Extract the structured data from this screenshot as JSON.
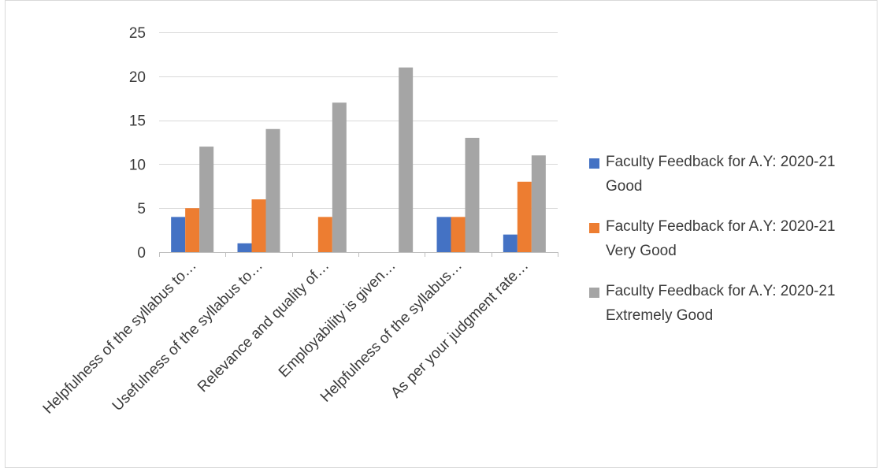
{
  "chart_data": {
    "type": "bar",
    "title": "",
    "xlabel": "",
    "ylabel": "",
    "ylim": [
      0,
      25
    ],
    "yticks": [
      0,
      5,
      10,
      15,
      20,
      25
    ],
    "grid": true,
    "legend_position": "right",
    "categories": [
      "Helpfulness of the syllabus to…",
      "Usefulness of the syllabus to…",
      "Relevance and quality of…",
      "Employability is given…",
      "Helpfulness of the syllabus…",
      "As per your judgment rate…"
    ],
    "series": [
      {
        "name": "Faculty Feedback for A.Y: 2020-21 Good",
        "color": "#4472c4",
        "values": [
          4,
          1,
          0,
          0,
          4,
          2
        ]
      },
      {
        "name": "Faculty Feedback for A.Y: 2020-21 Very Good",
        "color": "#ed7d31",
        "values": [
          5,
          6,
          4,
          0,
          4,
          8
        ]
      },
      {
        "name": "Faculty Feedback for A.Y: 2020-21 Extremely Good",
        "color": "#a5a5a5",
        "values": [
          12,
          14,
          17,
          21,
          13,
          11
        ]
      }
    ]
  }
}
